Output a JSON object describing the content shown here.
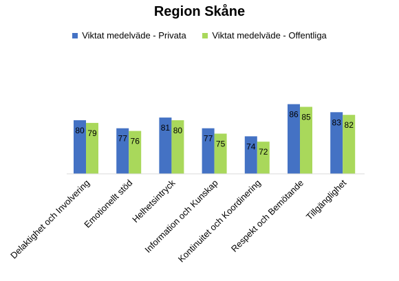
{
  "chart_data": {
    "type": "bar",
    "title": "Region Skåne",
    "xlabel": "",
    "ylabel": "",
    "ylim": [
      60,
      90
    ],
    "grid": false,
    "legend_position": "top",
    "categories": [
      "Delaktighet och Involvering",
      "Emotionellt stöd",
      "Helhetsintryck",
      "Information och Kunskap",
      "Kontinuitet och Koordinering",
      "Respekt och Bemötande",
      "Tillgänglighet"
    ],
    "series": [
      {
        "name": "Viktat medelväde - Privata",
        "color": "#4472C4",
        "values": [
          80,
          77,
          81,
          77,
          74,
          86,
          83
        ]
      },
      {
        "name": "Viktat medelväde - Offentliga",
        "color": "#A9D85B",
        "values": [
          79,
          76,
          80,
          75,
          72,
          85,
          82
        ]
      }
    ]
  }
}
